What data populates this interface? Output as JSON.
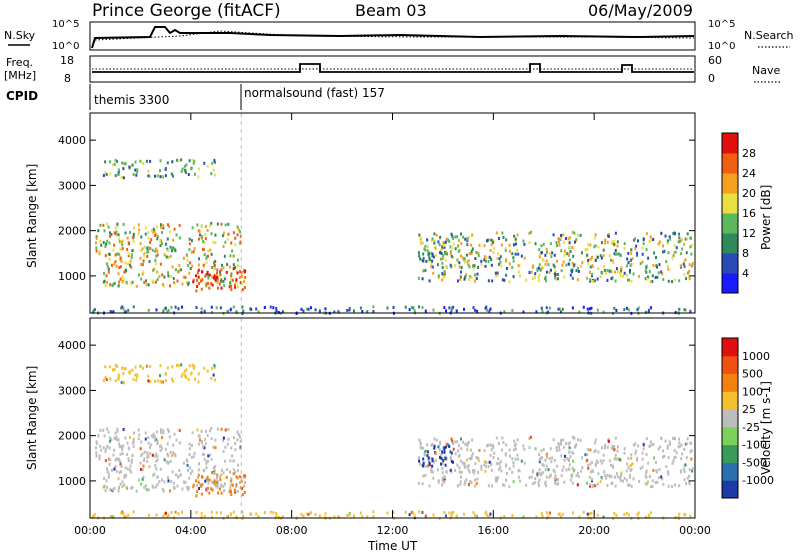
{
  "header": {
    "station": "Prince George (fitACF)",
    "beam": "Beam 03",
    "date": "06/May/2009"
  },
  "strip_labels": {
    "nsky": "N.Sky",
    "nsearch": "N.Search",
    "freq": "Freq.",
    "freq_unit": "[MHz]",
    "nave": "Nave",
    "cpid": "CPID",
    "nsky_ticks": [
      "10^5",
      "10^0"
    ],
    "nsearch_ticks": [
      "10^5",
      "10^0"
    ],
    "freq_ticks": [
      "18",
      "8"
    ],
    "nave_ticks": [
      "60",
      "0"
    ]
  },
  "cpid_segments": [
    {
      "label": "themis 3300",
      "start_hour": 0
    },
    {
      "label": "normalsound (fast) 157",
      "start_hour": 6
    }
  ],
  "chart_data": [
    {
      "type": "heatmap",
      "title": "",
      "ylabel": "Slant Range [km]",
      "colorbar_label": "Power [dB]",
      "ylim": [
        180,
        4600
      ],
      "yticks": [
        "1000",
        "2000",
        "3000",
        "4000"
      ],
      "colorbar_ticks": [
        "4",
        "8",
        "12",
        "16",
        "20",
        "24",
        "28"
      ],
      "colors": [
        "#1a1aff",
        "#2a4ab8",
        "#2e8a5a",
        "#5cb85c",
        "#e8e040",
        "#f4a020",
        "#f06010",
        "#e01010"
      ]
    },
    {
      "type": "heatmap",
      "title": "",
      "ylabel": "Slant Range [km]",
      "xlabel": "Time UT",
      "colorbar_label": "Velocity [m s-1]",
      "ylim": [
        180,
        4600
      ],
      "yticks": [
        "1000",
        "2000",
        "3000",
        "4000"
      ],
      "xticks": [
        "00:00",
        "04:00",
        "08:00",
        "12:00",
        "16:00",
        "20:00",
        "00:00"
      ],
      "xlim_hours": [
        0,
        24
      ],
      "colorbar_ticks": [
        "1000",
        "500",
        "100",
        "25",
        "-25",
        "-100",
        "-500",
        "-1000"
      ],
      "colors": [
        "#1a3aa8",
        "#2a70b0",
        "#3a9a5a",
        "#7cd05c",
        "#bdbdbd",
        "#f4c030",
        "#f48010",
        "#f05010",
        "#e01010"
      ]
    }
  ],
  "colors": {
    "power_high": "#e01010",
    "power_low": "#1a1aff",
    "ground_scatter": "#bdbdbd"
  }
}
